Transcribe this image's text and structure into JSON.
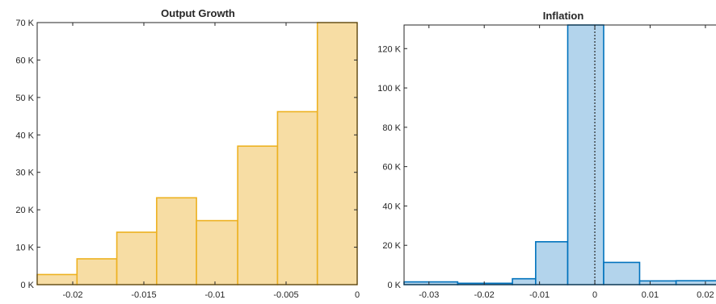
{
  "chart_data": [
    {
      "type": "bar",
      "title": "Output Growth",
      "xlabel": "",
      "ylabel": "",
      "xlim": [
        -0.0225,
        0.0
      ],
      "ylim": [
        0,
        70000
      ],
      "bin_edges": [
        -0.0225,
        -0.0197,
        -0.0169,
        -0.0141,
        -0.0113,
        -0.0084,
        -0.0056,
        -0.0028,
        0.0
      ],
      "values": [
        2700,
        6900,
        14000,
        23200,
        17100,
        37000,
        46200,
        70000
      ],
      "x_ticks": [
        -0.02,
        -0.015,
        -0.01,
        -0.005,
        0
      ],
      "x_tick_labels": [
        "-0.02",
        "-0.015",
        "-0.01",
        "-0.005",
        "0"
      ],
      "y_ticks": [
        0,
        10000,
        20000,
        30000,
        40000,
        50000,
        60000,
        70000
      ],
      "y_tick_labels": [
        "0 K",
        "10 K",
        "20 K",
        "30 K",
        "40 K",
        "50 K",
        "60 K",
        "70 K"
      ],
      "face_color": "#F7DDA4",
      "edge_color": "#EDB120",
      "grid": false
    },
    {
      "type": "bar",
      "title": "Inflation",
      "xlabel": "",
      "ylabel": "",
      "xlim": [
        -0.0345,
        0.0225
      ],
      "ylim": [
        0,
        132000
      ],
      "bin_edges": [
        -0.0345,
        -0.0248,
        -0.0149,
        -0.0107,
        -0.0049,
        0.0016,
        0.0081,
        0.0147,
        0.0225
      ],
      "values": [
        1400,
        700,
        3000,
        21800,
        132000,
        11300,
        1900,
        2000
      ],
      "reference_line_x": 0,
      "x_ticks": [
        -0.03,
        -0.02,
        -0.01,
        0,
        0.01,
        0.02
      ],
      "x_tick_labels": [
        "-0.03",
        "-0.02",
        "-0.01",
        "0",
        "0.01",
        "0.02"
      ],
      "y_ticks": [
        0,
        20000,
        40000,
        60000,
        80000,
        100000,
        120000
      ],
      "y_tick_labels": [
        "0 K",
        "20 K",
        "40 K",
        "60 K",
        "80 K",
        "100 K",
        "120 K"
      ],
      "face_color": "#B3D4EC",
      "edge_color": "#0072BD",
      "grid": false
    }
  ]
}
